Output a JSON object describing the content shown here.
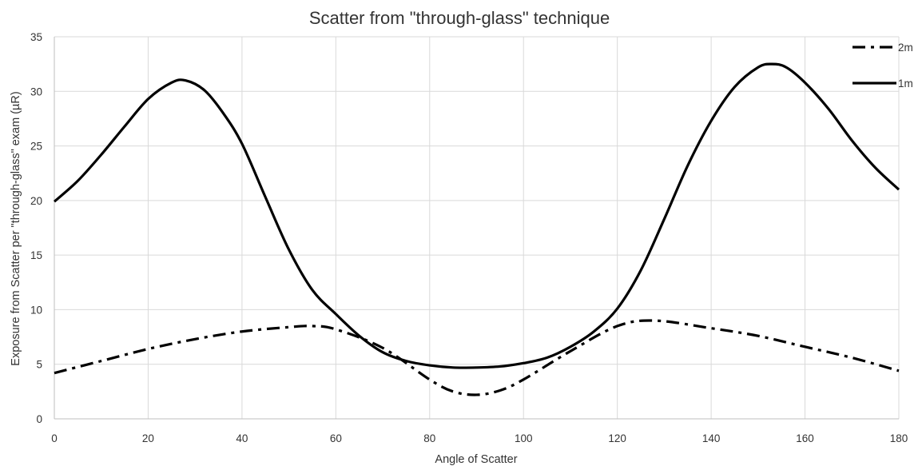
{
  "chart_data": {
    "type": "line",
    "title": "Scatter from \"through-glass\" technique",
    "xlabel": "Angle of Scatter",
    "ylabel": "Exposure from Scatter per \"through-glass\" exam (µR)",
    "xlim": [
      0,
      180
    ],
    "ylim": [
      0,
      35
    ],
    "xticks": [
      0,
      20,
      40,
      60,
      80,
      100,
      120,
      140,
      160,
      180
    ],
    "yticks": [
      0,
      5,
      10,
      15,
      20,
      25,
      30,
      35
    ],
    "grid": true,
    "legend_position": "top-right",
    "series": [
      {
        "name": "2m",
        "style": "dash-dot",
        "color": "#000000",
        "x": [
          0,
          10,
          20,
          30,
          40,
          50,
          55,
          60,
          70,
          80,
          85,
          90,
          95,
          100,
          110,
          120,
          128,
          140,
          150,
          160,
          170,
          180
        ],
        "y": [
          4.2,
          5.3,
          6.4,
          7.3,
          8.0,
          8.4,
          8.5,
          8.2,
          6.5,
          3.6,
          2.5,
          2.2,
          2.6,
          3.6,
          6.2,
          8.5,
          9.0,
          8.3,
          7.6,
          6.6,
          5.6,
          4.4
        ]
      },
      {
        "name": "1m",
        "style": "solid",
        "color": "#000000",
        "x": [
          0,
          5,
          10,
          15,
          20,
          25,
          28,
          32,
          36,
          40,
          45,
          50,
          55,
          60,
          65,
          70,
          75,
          80,
          85,
          90,
          95,
          100,
          105,
          110,
          115,
          120,
          125,
          130,
          135,
          140,
          145,
          150,
          153,
          156,
          160,
          165,
          170,
          175,
          180
        ],
        "y": [
          19.9,
          21.8,
          24.2,
          26.8,
          29.3,
          30.8,
          31.0,
          30.1,
          28.0,
          25.2,
          20.3,
          15.5,
          11.8,
          9.6,
          7.6,
          6.1,
          5.3,
          4.9,
          4.7,
          4.7,
          4.8,
          5.1,
          5.6,
          6.6,
          8.0,
          10.1,
          13.6,
          18.3,
          23.2,
          27.3,
          30.4,
          32.2,
          32.5,
          32.2,
          30.8,
          28.4,
          25.5,
          23.0,
          21.0
        ]
      }
    ]
  }
}
